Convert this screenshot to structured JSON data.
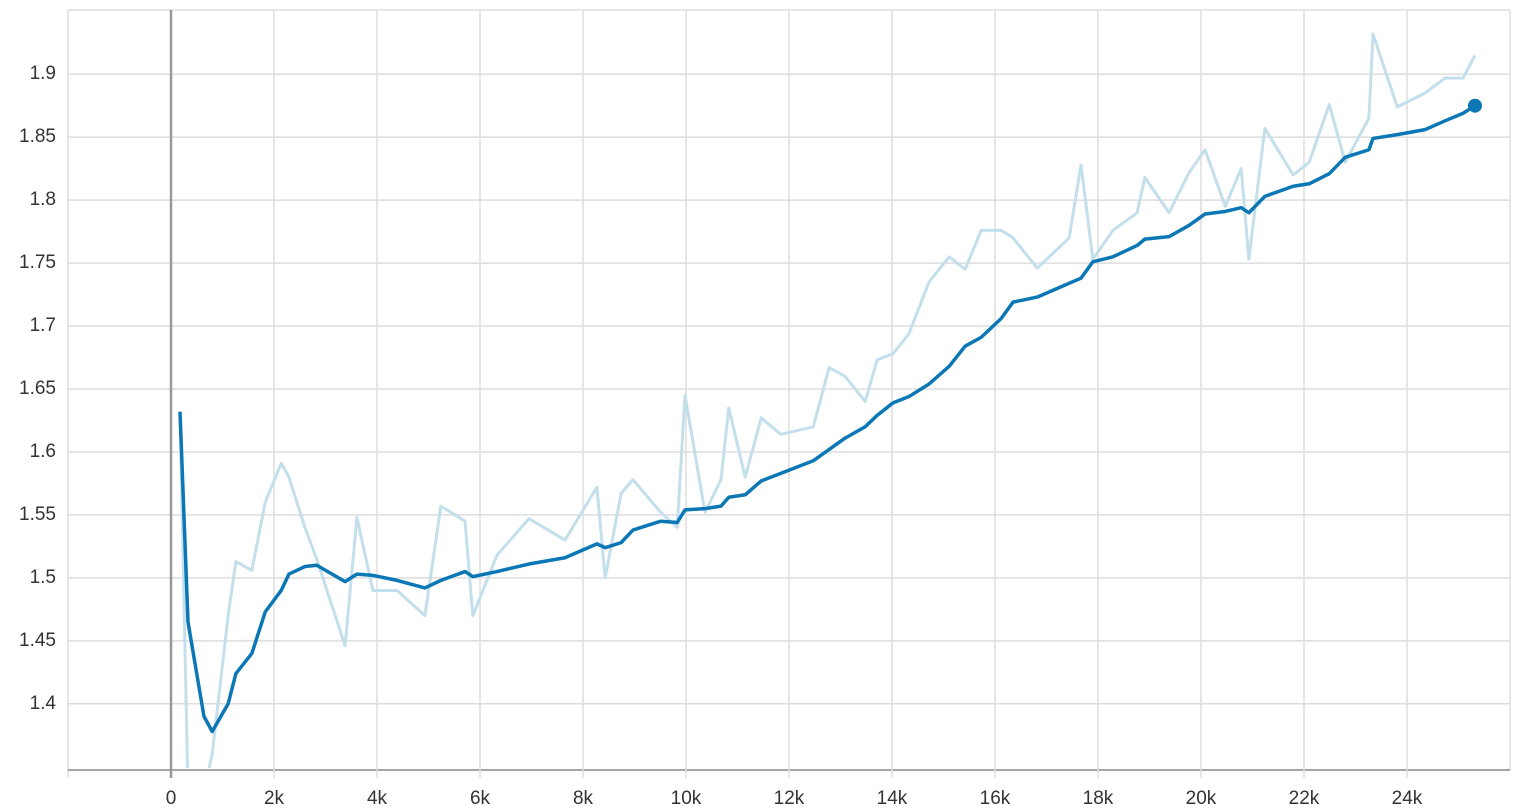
{
  "chart_data": {
    "type": "line",
    "x": [
      175,
      330,
      640,
      800,
      1110,
      1260,
      1570,
      1830,
      2140,
      2290,
      2600,
      2830,
      3380,
      3610,
      3920,
      4390,
      4930,
      5240,
      5710,
      5860,
      6330,
      6950,
      7650,
      8270,
      8430,
      8740,
      8970,
      9510,
      9830,
      9980,
      10370,
      10680,
      10830,
      11150,
      11460,
      11840,
      12470,
      12780,
      13090,
      13480,
      13710,
      14020,
      14330,
      14720,
      15110,
      15420,
      15730,
      16120,
      16350,
      16820,
      17440,
      17670,
      17900,
      18290,
      18760,
      18910,
      19380,
      19770,
      20080,
      20470,
      20780,
      20930,
      21240,
      21790,
      22100,
      22490,
      22800,
      23260,
      23340,
      23810,
      24350,
      24740,
      25090,
      25320
    ],
    "series": [
      {
        "color": "#c4dfec",
        "values": [
          1.632,
          1.33,
          1.33,
          1.36,
          1.47,
          1.513,
          1.506,
          1.56,
          1.591,
          1.58,
          1.54,
          1.515,
          1.446,
          1.548,
          1.49,
          1.49,
          1.47,
          1.557,
          1.545,
          1.47,
          1.518,
          1.547,
          1.53,
          1.572,
          1.5,
          1.567,
          1.578,
          1.552,
          1.54,
          1.645,
          1.552,
          1.578,
          1.635,
          1.58,
          1.627,
          1.614,
          1.62,
          1.667,
          1.66,
          1.64,
          1.673,
          1.678,
          1.694,
          1.735,
          1.755,
          1.745,
          1.776,
          1.776,
          1.77,
          1.746,
          1.77,
          1.828,
          1.753,
          1.776,
          1.79,
          1.818,
          1.79,
          1.822,
          1.84,
          1.795,
          1.825,
          1.753,
          1.857,
          1.82,
          1.83,
          1.876,
          1.83,
          1.865,
          1.932,
          1.874,
          1.885,
          1.897,
          1.897,
          1.915
        ]
      },
      {
        "color": "#0b77b5",
        "values": [
          1.632,
          1.465,
          1.39,
          1.378,
          1.4,
          1.424,
          1.44,
          1.473,
          1.49,
          1.503,
          1.509,
          1.51,
          1.497,
          1.503,
          1.502,
          1.498,
          1.492,
          1.498,
          1.505,
          1.501,
          1.505,
          1.511,
          1.516,
          1.527,
          1.524,
          1.528,
          1.538,
          1.545,
          1.544,
          1.554,
          1.555,
          1.557,
          1.564,
          1.566,
          1.577,
          1.583,
          1.593,
          1.602,
          1.611,
          1.62,
          1.629,
          1.639,
          1.644,
          1.654,
          1.668,
          1.684,
          1.691,
          1.706,
          1.719,
          1.723,
          1.734,
          1.738,
          1.751,
          1.755,
          1.764,
          1.769,
          1.771,
          1.78,
          1.789,
          1.791,
          1.794,
          1.79,
          1.803,
          1.811,
          1.813,
          1.821,
          1.834,
          1.84,
          1.849,
          1.852,
          1.856,
          1.863,
          1.869,
          1.875
        ]
      }
    ],
    "xlim": [
      -2000,
      26000
    ],
    "xticks": [
      0,
      {
        "value": 2000,
        "label": "2k"
      },
      {
        "value": 4000,
        "label": "4k"
      },
      {
        "value": 6000,
        "label": "6k"
      },
      {
        "value": 8000,
        "label": "8k"
      },
      {
        "value": 10000,
        "label": "10k"
      },
      {
        "value": 12000,
        "label": "12k"
      },
      {
        "value": 14000,
        "label": "14k"
      },
      {
        "value": 16000,
        "label": "16k"
      },
      {
        "value": 18000,
        "label": "18k"
      },
      {
        "value": 20000,
        "label": "20k"
      },
      {
        "value": 22000,
        "label": "22k"
      },
      {
        "value": 24000,
        "label": "24k"
      }
    ],
    "ylim": [
      1.349,
      1.951
    ],
    "yticks": [
      1.4,
      1.45,
      1.5,
      1.55,
      1.6,
      1.65,
      1.7,
      1.75,
      1.8,
      1.85,
      1.9
    ],
    "grid": true
  }
}
